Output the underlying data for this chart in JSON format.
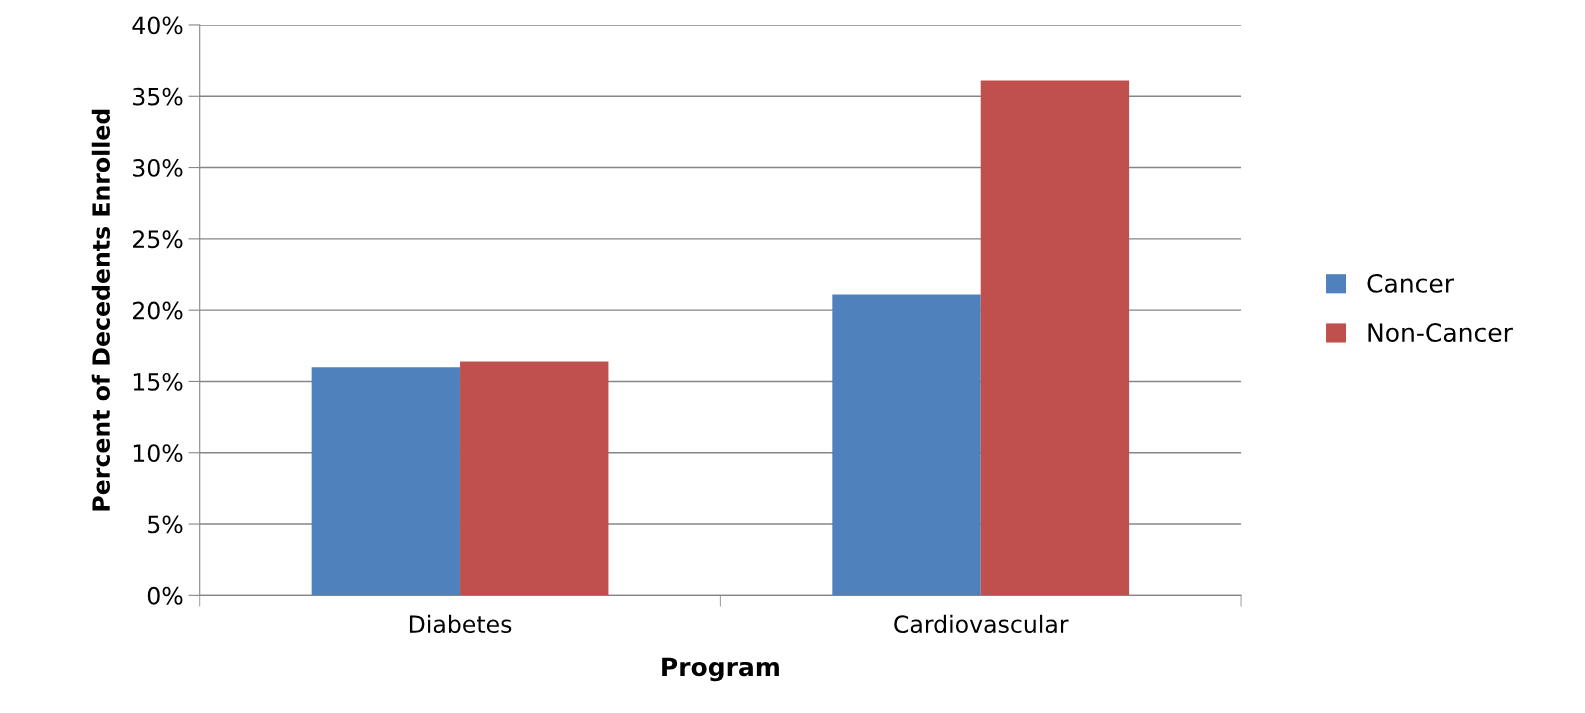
{
  "chart_data": {
    "type": "bar",
    "xlabel": "Program",
    "ylabel": "Percent of Decedents Enrolled",
    "categories": [
      "Diabetes",
      "Cardiovascular"
    ],
    "series": [
      {
        "name": "Cancer",
        "color": "#4f81bd",
        "values": [
          16.0,
          21.1
        ]
      },
      {
        "name": "Non-Cancer",
        "color": "#c0504d",
        "values": [
          16.4,
          36.1
        ]
      }
    ],
    "ylim": [
      0,
      40
    ],
    "yticks": [
      {
        "value": 0,
        "label": "0%"
      },
      {
        "value": 5,
        "label": "5%"
      },
      {
        "value": 10,
        "label": "10%"
      },
      {
        "value": 15,
        "label": "15%"
      },
      {
        "value": 20,
        "label": "20%"
      },
      {
        "value": 25,
        "label": "25%"
      },
      {
        "value": 30,
        "label": "30%"
      },
      {
        "value": 35,
        "label": "35%"
      },
      {
        "value": 40,
        "label": "40%"
      }
    ],
    "grid": "y",
    "legend": "right"
  }
}
